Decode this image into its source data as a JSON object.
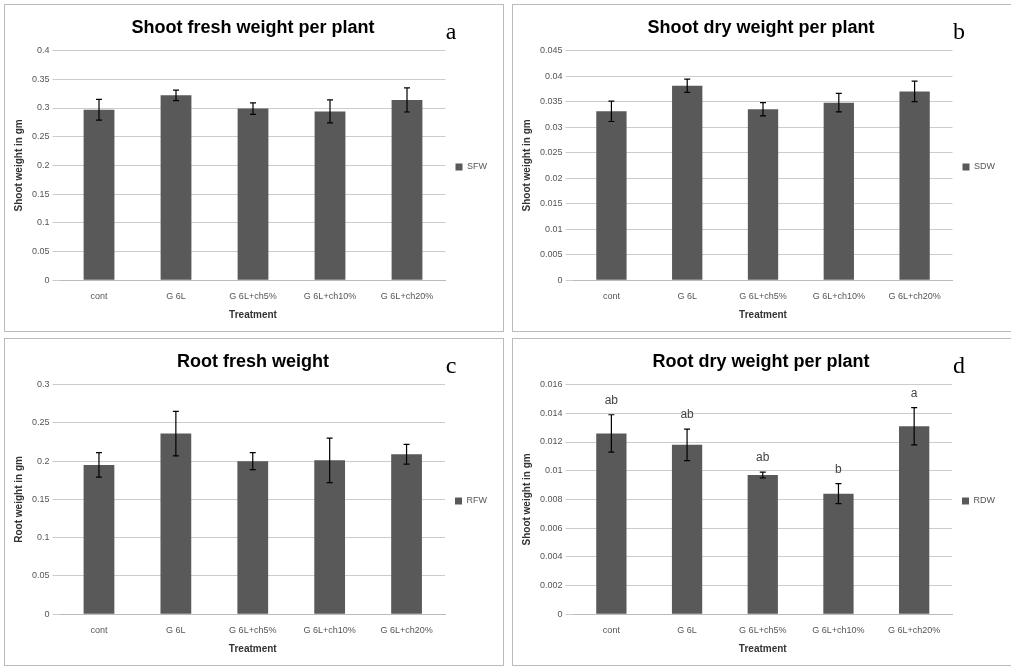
{
  "chart_data": [
    {
      "type": "bar",
      "title": "Shoot fresh weight per plant",
      "xlabel": "Treatment",
      "ylabel": "Shoot weight in gm",
      "categories": [
        "cont",
        "G 6L",
        "G 6L+ch5%",
        "G 6L+ch10%",
        "G 6L+ch20%"
      ],
      "series": [
        {
          "name": "SFW",
          "color": "#595959",
          "values": [
            0.297,
            0.322,
            0.299,
            0.294,
            0.314
          ],
          "errors": [
            0.018,
            0.009,
            0.01,
            0.02,
            0.021
          ]
        }
      ],
      "ylim": [
        0,
        0.4
      ],
      "yticks": [
        0,
        0.05,
        0.1,
        0.15,
        0.2,
        0.25,
        0.3,
        0.35,
        0.4
      ],
      "grid": "y",
      "legend": "right",
      "annotations": [
        "a"
      ]
    },
    {
      "type": "bar",
      "title": "Shoot dry weight per plant",
      "xlabel": "Treatment",
      "ylabel": "Shoot weight in gm",
      "categories": [
        "cont",
        "G 6L",
        "G 6L+ch5%",
        "G 6L+ch10%",
        "G 6L+ch20%"
      ],
      "series": [
        {
          "name": "SDW",
          "color": "#595959",
          "values": [
            0.0331,
            0.0381,
            0.0335,
            0.0348,
            0.037
          ],
          "errors": [
            0.002,
            0.0013,
            0.0013,
            0.0018,
            0.002
          ]
        }
      ],
      "ylim": [
        0,
        0.045
      ],
      "yticks": [
        0,
        0.005,
        0.01,
        0.015,
        0.02,
        0.025,
        0.03,
        0.035,
        0.04,
        0.045
      ],
      "grid": "y",
      "legend": "right",
      "annotations": [
        "b"
      ]
    },
    {
      "type": "bar",
      "title": "Root fresh weight",
      "xlabel": "Treatment",
      "ylabel": "Root weight in gm",
      "categories": [
        "cont",
        "G 6L",
        "G 6L+ch5%",
        "G 6L+ch10%",
        "G 6L+ch20%"
      ],
      "series": [
        {
          "name": "RFW",
          "color": "#595959",
          "values": [
            0.195,
            0.236,
            0.2,
            0.201,
            0.209
          ],
          "errors": [
            0.016,
            0.029,
            0.011,
            0.029,
            0.013
          ]
        }
      ],
      "ylim": [
        0,
        0.3
      ],
      "yticks": [
        0,
        0.05,
        0.1,
        0.15,
        0.2,
        0.25,
        0.3
      ],
      "grid": "y",
      "legend": "right",
      "annotations": [
        "c"
      ]
    },
    {
      "type": "bar",
      "title": "Root dry weight per plant",
      "xlabel": "Treatment",
      "ylabel": "Shoot weight in gm",
      "categories": [
        "cont",
        "G 6L",
        "G 6L+ch5%",
        "G 6L+ch10%",
        "G 6L+ch20%"
      ],
      "series": [
        {
          "name": "RDW",
          "color": "#595959",
          "values": [
            0.0126,
            0.0118,
            0.0097,
            0.0084,
            0.0131
          ],
          "errors": [
            0.0013,
            0.0011,
            0.0002,
            0.0007,
            0.0013
          ]
        }
      ],
      "ylim": [
        0,
        0.016
      ],
      "yticks": [
        0,
        0.002,
        0.004,
        0.006,
        0.008,
        0.01,
        0.012,
        0.014,
        0.016
      ],
      "grid": "y",
      "legend": "right",
      "annotations": [
        "d",
        {
          "text": "ab",
          "x": "cont",
          "y": 0.0126
        },
        {
          "text": "ab",
          "x": "G 6L",
          "y": 0.0118
        },
        {
          "text": "ab",
          "x": "G 6L+ch5%",
          "y": 0.0097
        },
        {
          "text": "b",
          "x": "G 6L+ch10%",
          "y": 0.0084
        },
        {
          "text": "a",
          "x": "G 6L+ch20%",
          "y": 0.0131
        }
      ]
    }
  ]
}
